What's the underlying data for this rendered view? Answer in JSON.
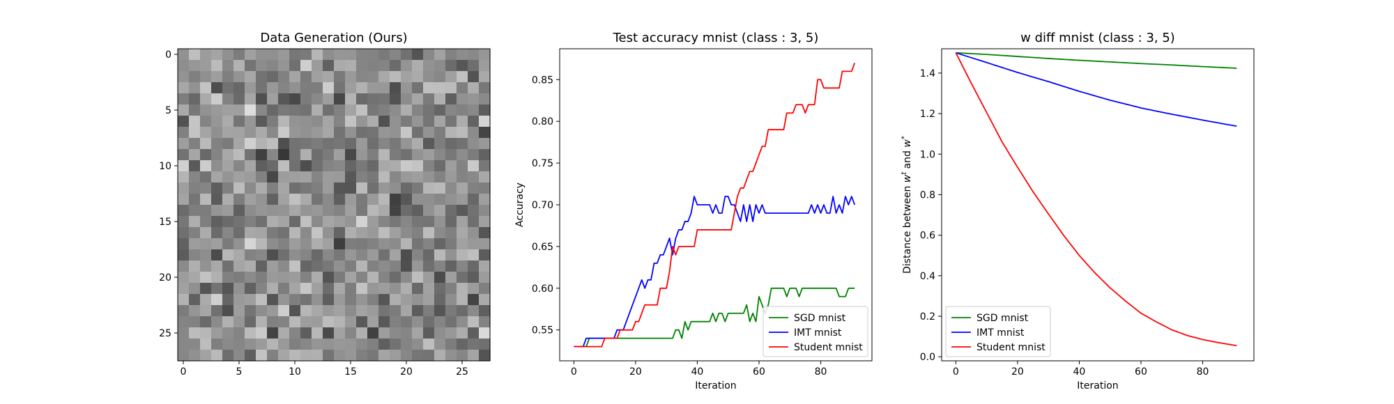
{
  "chart_data": [
    {
      "type": "heatmap",
      "title": "Data Generation (Ours)",
      "xlabel": "",
      "ylabel": "",
      "rows": 28,
      "cols": 28,
      "xticks": [
        "0",
        "5",
        "10",
        "15",
        "20",
        "25"
      ],
      "yticks": [
        "0",
        "5",
        "10",
        "15",
        "20",
        "25"
      ],
      "colormap": "gray",
      "value_range": [
        0,
        1
      ],
      "values_note": "28x28 grid of random gray-level pixel values (noise)"
    },
    {
      "type": "line",
      "title": "Test accuracy mnist (class : 3, 5)",
      "xlabel": "Iteration",
      "ylabel": "Accuracy",
      "xlim": [
        -4.6,
        96.6
      ],
      "ylim": [
        0.513,
        0.887
      ],
      "xticks": [
        "0",
        "20",
        "40",
        "60",
        "80"
      ],
      "yticks": [
        "0.55",
        "0.60",
        "0.65",
        "0.70",
        "0.75",
        "0.80",
        "0.85"
      ],
      "legend_position": "lower-right",
      "series": [
        {
          "name": "SGD mnist",
          "color": "#008000",
          "points": [
            [
              0,
              0.53
            ],
            [
              4,
              0.53
            ],
            [
              5,
              0.54
            ],
            [
              32,
              0.54
            ],
            [
              33,
              0.55
            ],
            [
              34,
              0.55
            ],
            [
              35,
              0.54
            ],
            [
              36,
              0.56
            ],
            [
              37,
              0.55
            ],
            [
              38,
              0.56
            ],
            [
              44,
              0.56
            ],
            [
              45,
              0.57
            ],
            [
              46,
              0.56
            ],
            [
              47,
              0.57
            ],
            [
              48,
              0.57
            ],
            [
              49,
              0.56
            ],
            [
              50,
              0.57
            ],
            [
              55,
              0.57
            ],
            [
              56,
              0.58
            ],
            [
              57,
              0.56
            ],
            [
              58,
              0.57
            ],
            [
              59,
              0.56
            ],
            [
              60,
              0.59
            ],
            [
              61,
              0.58
            ],
            [
              62,
              0.57
            ],
            [
              63,
              0.58
            ],
            [
              64,
              0.6
            ],
            [
              68,
              0.6
            ],
            [
              69,
              0.59
            ],
            [
              70,
              0.6
            ],
            [
              72,
              0.6
            ],
            [
              73,
              0.59
            ],
            [
              74,
              0.6
            ],
            [
              85,
              0.6
            ],
            [
              86,
              0.59
            ],
            [
              88,
              0.59
            ],
            [
              89,
              0.6
            ],
            [
              91,
              0.6
            ]
          ]
        },
        {
          "name": "IMT mnist",
          "color": "#0000ff",
          "points": [
            [
              0,
              0.53
            ],
            [
              3,
              0.53
            ],
            [
              4,
              0.54
            ],
            [
              12,
              0.54
            ],
            [
              14,
              0.55
            ],
            [
              17,
              0.56
            ],
            [
              18,
              0.57
            ],
            [
              19,
              0.58
            ],
            [
              20,
              0.59
            ],
            [
              21,
              0.6
            ],
            [
              22,
              0.61
            ],
            [
              23,
              0.6
            ],
            [
              24,
              0.61
            ],
            [
              25,
              0.61
            ],
            [
              26,
              0.63
            ],
            [
              27,
              0.63
            ],
            [
              28,
              0.64
            ],
            [
              30,
              0.65
            ],
            [
              31,
              0.66
            ],
            [
              32,
              0.64
            ],
            [
              33,
              0.66
            ],
            [
              34,
              0.67
            ],
            [
              35,
              0.67
            ],
            [
              36,
              0.68
            ],
            [
              37,
              0.68
            ],
            [
              38,
              0.69
            ],
            [
              39,
              0.71
            ],
            [
              40,
              0.7
            ],
            [
              44,
              0.7
            ],
            [
              45,
              0.69
            ],
            [
              46,
              0.7
            ],
            [
              47,
              0.69
            ],
            [
              48,
              0.69
            ],
            [
              49,
              0.71
            ],
            [
              50,
              0.71
            ],
            [
              51,
              0.7
            ],
            [
              52,
              0.7
            ],
            [
              53,
              0.69
            ],
            [
              54,
              0.68
            ],
            [
              55,
              0.7
            ],
            [
              56,
              0.68
            ],
            [
              57,
              0.7
            ],
            [
              58,
              0.68
            ],
            [
              59,
              0.7
            ],
            [
              60,
              0.69
            ],
            [
              61,
              0.7
            ],
            [
              62,
              0.69
            ],
            [
              76,
              0.69
            ],
            [
              77,
              0.7
            ],
            [
              78,
              0.69
            ],
            [
              79,
              0.7
            ],
            [
              80,
              0.69
            ],
            [
              81,
              0.7
            ],
            [
              82,
              0.69
            ],
            [
              83,
              0.69
            ],
            [
              84,
              0.71
            ],
            [
              85,
              0.69
            ],
            [
              86,
              0.7
            ],
            [
              87,
              0.69
            ],
            [
              88,
              0.71
            ],
            [
              89,
              0.7
            ],
            [
              90,
              0.71
            ],
            [
              91,
              0.7
            ]
          ]
        },
        {
          "name": "Student mnist",
          "color": "#ff0000",
          "points": [
            [
              0,
              0.53
            ],
            [
              9,
              0.53
            ],
            [
              10,
              0.54
            ],
            [
              14,
              0.54
            ],
            [
              15,
              0.55
            ],
            [
              19,
              0.55
            ],
            [
              20,
              0.56
            ],
            [
              22,
              0.57
            ],
            [
              23,
              0.58
            ],
            [
              27,
              0.58
            ],
            [
              28,
              0.6
            ],
            [
              31,
              0.62
            ],
            [
              32,
              0.65
            ],
            [
              33,
              0.64
            ],
            [
              34,
              0.65
            ],
            [
              39,
              0.65
            ],
            [
              40,
              0.67
            ],
            [
              51,
              0.67
            ],
            [
              52,
              0.69
            ],
            [
              53,
              0.71
            ],
            [
              54,
              0.72
            ],
            [
              55,
              0.72
            ],
            [
              56,
              0.73
            ],
            [
              57,
              0.74
            ],
            [
              58,
              0.74
            ],
            [
              59,
              0.75
            ],
            [
              60,
              0.76
            ],
            [
              61,
              0.77
            ],
            [
              62,
              0.77
            ],
            [
              63,
              0.79
            ],
            [
              64,
              0.79
            ],
            [
              68,
              0.79
            ],
            [
              69,
              0.81
            ],
            [
              71,
              0.81
            ],
            [
              72,
              0.82
            ],
            [
              74,
              0.82
            ],
            [
              75,
              0.81
            ],
            [
              76,
              0.82
            ],
            [
              78,
              0.82
            ],
            [
              79,
              0.85
            ],
            [
              80,
              0.85
            ],
            [
              81,
              0.84
            ],
            [
              86,
              0.84
            ],
            [
              87,
              0.86
            ],
            [
              88,
              0.86
            ],
            [
              90,
              0.86
            ],
            [
              91,
              0.87
            ]
          ]
        }
      ]
    },
    {
      "type": "line",
      "title": "w diff mnist (class : 3, 5)",
      "xlabel": "Iteration",
      "ylabel_parts": [
        "Distance between ",
        "w",
        "t",
        " and ",
        "w",
        "*"
      ],
      "xlim": [
        -4.6,
        96.6
      ],
      "ylim": [
        -0.02,
        1.52
      ],
      "xticks": [
        "0",
        "20",
        "40",
        "60",
        "80"
      ],
      "yticks": [
        "0.0",
        "0.2",
        "0.4",
        "0.6",
        "0.8",
        "1.0",
        "1.2",
        "1.4"
      ],
      "legend_position": "lower-left",
      "series": [
        {
          "name": "SGD mnist",
          "color": "#008000",
          "points": [
            [
              0,
              1.5
            ],
            [
              10,
              1.492
            ],
            [
              20,
              1.482
            ],
            [
              30,
              1.472
            ],
            [
              40,
              1.463
            ],
            [
              50,
              1.455
            ],
            [
              60,
              1.447
            ],
            [
              70,
              1.44
            ],
            [
              80,
              1.432
            ],
            [
              91,
              1.424
            ]
          ]
        },
        {
          "name": "IMT mnist",
          "color": "#0000ff",
          "points": [
            [
              0,
              1.5
            ],
            [
              10,
              1.452
            ],
            [
              20,
              1.403
            ],
            [
              30,
              1.358
            ],
            [
              40,
              1.31
            ],
            [
              50,
              1.266
            ],
            [
              60,
              1.228
            ],
            [
              70,
              1.197
            ],
            [
              80,
              1.168
            ],
            [
              91,
              1.138
            ]
          ]
        },
        {
          "name": "Student mnist",
          "color": "#ff0000",
          "points": [
            [
              0,
              1.5
            ],
            [
              5,
              1.35
            ],
            [
              10,
              1.205
            ],
            [
              15,
              1.06
            ],
            [
              20,
              0.935
            ],
            [
              25,
              0.815
            ],
            [
              30,
              0.705
            ],
            [
              35,
              0.598
            ],
            [
              40,
              0.5
            ],
            [
              45,
              0.415
            ],
            [
              50,
              0.34
            ],
            [
              55,
              0.275
            ],
            [
              60,
              0.215
            ],
            [
              65,
              0.172
            ],
            [
              70,
              0.133
            ],
            [
              75,
              0.105
            ],
            [
              80,
              0.085
            ],
            [
              85,
              0.07
            ],
            [
              91,
              0.055
            ]
          ]
        }
      ]
    }
  ]
}
